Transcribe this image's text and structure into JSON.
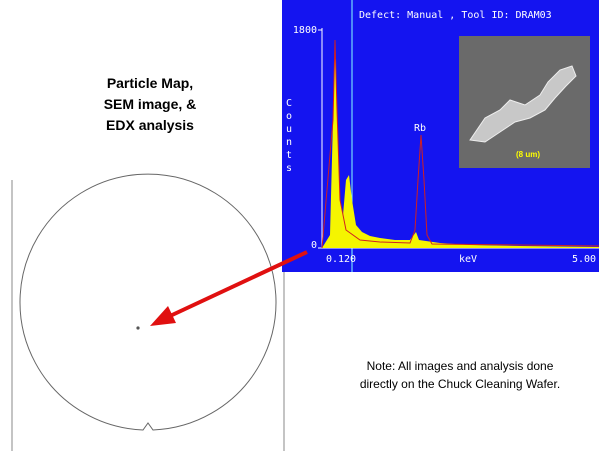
{
  "title": {
    "lines": [
      "Particle Map,",
      "SEM image, &",
      "EDX analysis"
    ]
  },
  "note": {
    "lines": [
      "Note:  All images and analysis done",
      "directly on the Chuck Cleaning Wafer."
    ]
  },
  "edx_panel": {
    "header": "Defect: Manual , Tool ID: DRAM03",
    "y_axis_label": [
      "C",
      "o",
      "u",
      "n",
      "t",
      "s"
    ],
    "y_top_label": "1800",
    "y_bottom_label": "0",
    "x_left_label": "0.120",
    "x_unit_label": "keV",
    "x_right_label": "5.00",
    "peak_label": "Rb",
    "sem_scale_label": "(8 um)"
  }
}
